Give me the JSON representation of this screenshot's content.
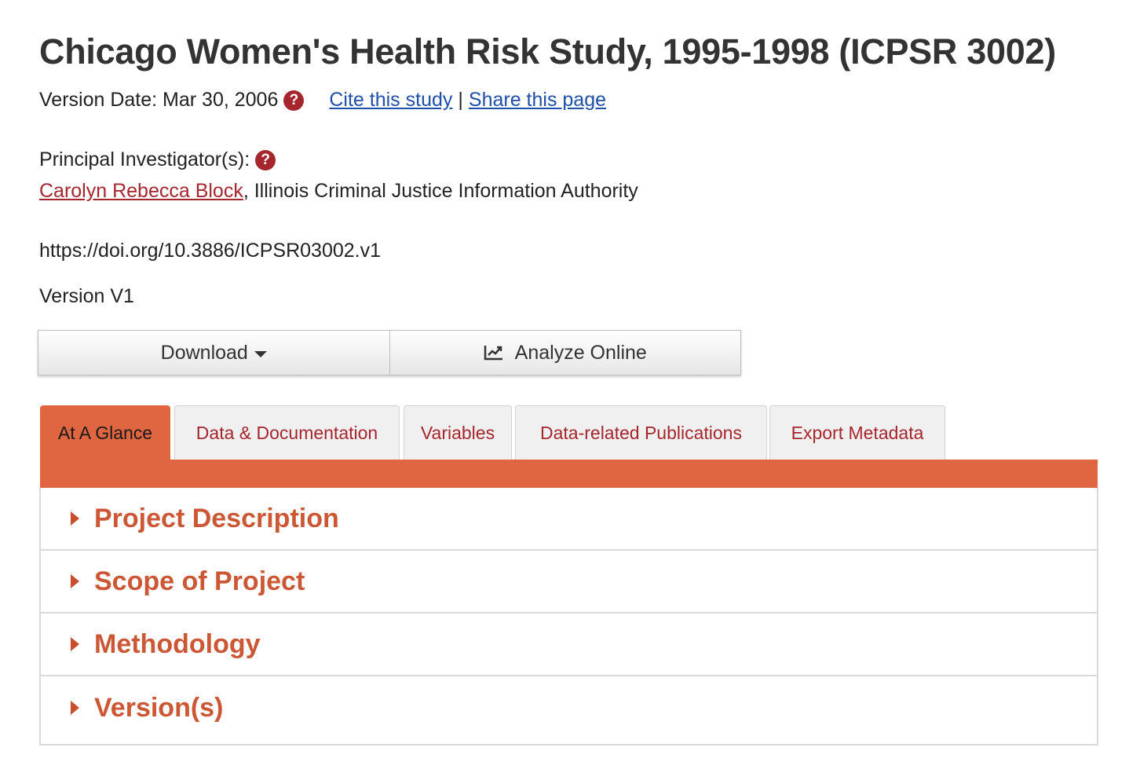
{
  "study": {
    "title": "Chicago Women's Health Risk Study, 1995-1998 (ICPSR 3002)",
    "version_date_label": "Version Date:",
    "version_date": "Mar 30, 2006",
    "help_icon_glyph": "?",
    "cite_link": "Cite this study",
    "separator": "|",
    "share_link": "Share this page",
    "pi_label": "Principal Investigator(s):",
    "pi_name": "Carolyn Rebecca Block",
    "pi_affiliation": ", Illinois Criminal Justice Information Authority",
    "doi": "https://doi.org/10.3886/ICPSR03002.v1",
    "version": "Version V1"
  },
  "actions": {
    "download_label": "Download",
    "analyze_label": "Analyze Online"
  },
  "tabs": [
    {
      "label": "At A Glance",
      "active": true
    },
    {
      "label": "Data & Documentation",
      "active": false
    },
    {
      "label": "Variables",
      "active": false
    },
    {
      "label": "Data-related Publications",
      "active": false
    },
    {
      "label": "Export Metadata",
      "active": false
    }
  ],
  "sections": [
    {
      "title": "Project Description"
    },
    {
      "title": "Scope of Project"
    },
    {
      "title": "Methodology"
    },
    {
      "title": "Version(s)"
    }
  ],
  "colors": {
    "accent_orange": "#e06641",
    "brand_red": "#a6262e",
    "link_blue": "#1f4fa8",
    "section_title": "#cc5735"
  }
}
